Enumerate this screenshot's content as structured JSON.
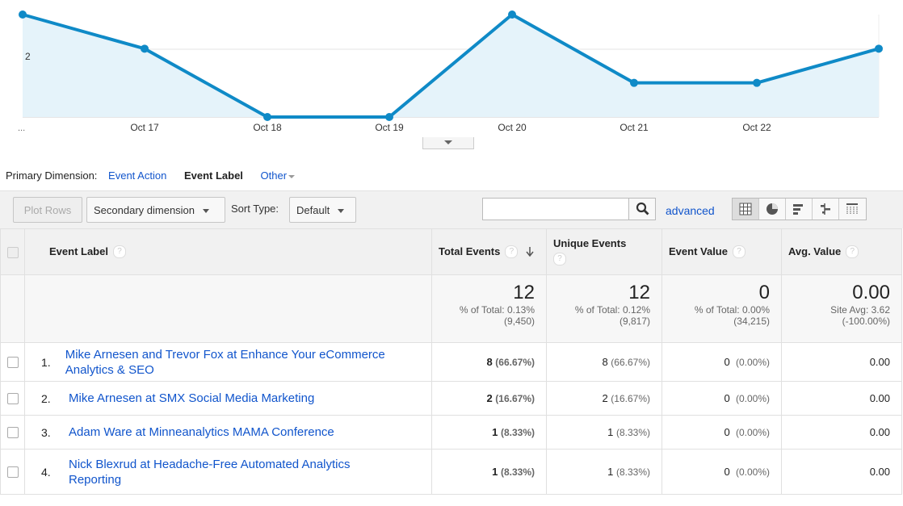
{
  "chart": {
    "x_ticks": [
      "...",
      "Oct 17",
      "Oct 18",
      "Oct 19",
      "Oct 20",
      "Oct 21",
      "Oct 22"
    ],
    "y_tick": "2",
    "series_color": "#0f8ac7",
    "fill_color": "#e5f3fa"
  },
  "chart_data": {
    "type": "area",
    "x": [
      "",
      "Oct 17",
      "Oct 18",
      "Oct 19",
      "Oct 20",
      "Oct 21",
      "Oct 22",
      ""
    ],
    "values": [
      3,
      2,
      0,
      0,
      3,
      1,
      1,
      2
    ],
    "ylim": [
      0,
      3
    ]
  },
  "dimension_bar": {
    "label": "Primary Dimension:",
    "items": [
      "Event Action",
      "Event Label",
      "Other"
    ]
  },
  "toolbar": {
    "plot_rows": "Plot Rows",
    "secondary_dimension": "Secondary dimension",
    "sort_type_label": "Sort Type:",
    "sort_type_value": "Default",
    "search_value": "",
    "advanced": "advanced"
  },
  "table": {
    "headers": {
      "label": "Event Label",
      "total_events": "Total Events",
      "unique_events": "Unique Events",
      "event_value": "Event Value",
      "avg_value": "Avg. Value"
    },
    "totals": {
      "total_events": {
        "value": "12",
        "line1": "% of Total: 0.13%",
        "line2": "(9,450)"
      },
      "unique_events": {
        "value": "12",
        "line1": "% of Total: 0.12%",
        "line2": "(9,817)"
      },
      "event_value": {
        "value": "0",
        "line1": "% of Total: 0.00%",
        "line2": "(34,215)"
      },
      "avg_value": {
        "value": "0.00",
        "line1": "Site Avg: 3.62",
        "line2": "(-100.00%)"
      }
    },
    "rows": [
      {
        "index": "1.",
        "label": "Mike Arnesen and Trevor Fox at Enhance Your eCommerce Analytics & SEO",
        "total": "8",
        "total_pct": "(66.67%)",
        "unique": "8",
        "unique_pct": "(66.67%)",
        "value": "0",
        "value_pct": "(0.00%)",
        "avg": "0.00"
      },
      {
        "index": "2.",
        "label": "Mike Arnesen at SMX Social Media Marketing",
        "total": "2",
        "total_pct": "(16.67%)",
        "unique": "2",
        "unique_pct": "(16.67%)",
        "value": "0",
        "value_pct": "(0.00%)",
        "avg": "0.00"
      },
      {
        "index": "3.",
        "label": "Adam Ware at Minneanalytics MAMA Conference",
        "total": "1",
        "total_pct": "(8.33%)",
        "unique": "1",
        "unique_pct": "(8.33%)",
        "value": "0",
        "value_pct": "(0.00%)",
        "avg": "0.00"
      },
      {
        "index": "4.",
        "label": "Nick Blexrud at Headache-Free Automated Analytics Reporting",
        "total": "1",
        "total_pct": "(8.33%)",
        "unique": "1",
        "unique_pct": "(8.33%)",
        "value": "0",
        "value_pct": "(0.00%)",
        "avg": "0.00"
      }
    ]
  },
  "icons": {
    "search": "search-icon",
    "views": [
      "table-view-icon",
      "pie-view-icon",
      "performance-view-icon",
      "comparison-view-icon",
      "pivot-view-icon"
    ]
  }
}
